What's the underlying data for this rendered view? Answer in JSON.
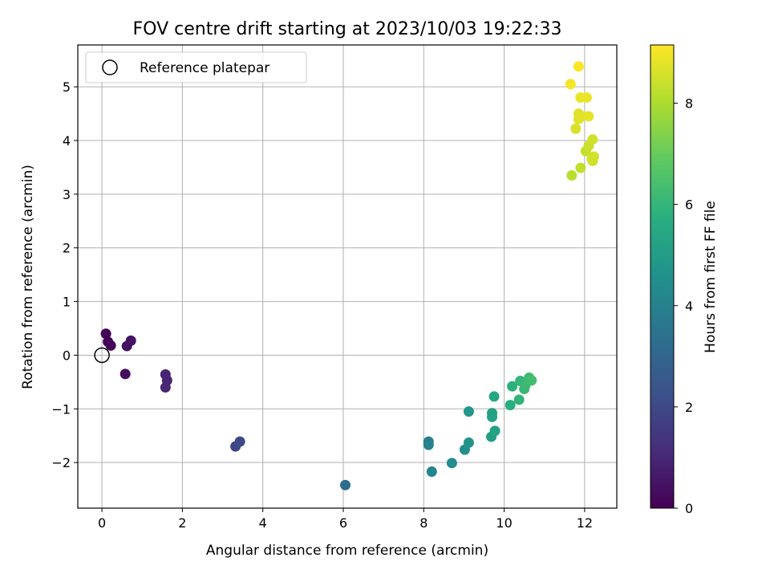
{
  "chart_data": {
    "type": "scatter",
    "title": "FOV centre drift starting at 2023/10/03 19:22:33",
    "xlabel": "Angular distance from reference (arcmin)",
    "ylabel": "Rotation from reference (arcmin)",
    "xlim": [
      -0.6,
      12.8
    ],
    "ylim": [
      -2.85,
      5.78
    ],
    "xticks": [
      0,
      2,
      4,
      6,
      8,
      10,
      12
    ],
    "yticks": [
      -2,
      -1,
      0,
      1,
      2,
      3,
      4,
      5
    ],
    "grid": true,
    "legend": {
      "placement": "top-left",
      "entries": [
        "Reference platepar"
      ]
    },
    "reference_point": {
      "x": 0,
      "y": 0,
      "label": "Reference platepar"
    },
    "colorbar": {
      "label": "Hours from first FF file",
      "min": 0,
      "max": 9.15,
      "ticks": [
        0,
        2,
        4,
        6,
        8
      ],
      "colormap": "viridis"
    },
    "points": [
      {
        "x": 0.1,
        "y": 0.4,
        "c": 0.05
      },
      {
        "x": 0.15,
        "y": 0.25,
        "c": 0.1
      },
      {
        "x": 0.22,
        "y": 0.18,
        "c": 0.15
      },
      {
        "x": 0.58,
        "y": -0.35,
        "c": 0.3
      },
      {
        "x": 0.62,
        "y": 0.17,
        "c": 0.4
      },
      {
        "x": 0.72,
        "y": 0.27,
        "c": 0.45
      },
      {
        "x": 1.58,
        "y": -0.36,
        "c": 0.9
      },
      {
        "x": 1.62,
        "y": -0.47,
        "c": 0.95
      },
      {
        "x": 1.58,
        "y": -0.6,
        "c": 1.0
      },
      {
        "x": 3.32,
        "y": -1.7,
        "c": 1.9
      },
      {
        "x": 3.43,
        "y": -1.61,
        "c": 2.0
      },
      {
        "x": 6.05,
        "y": -2.42,
        "c": 3.2
      },
      {
        "x": 8.12,
        "y": -1.61,
        "c": 4.0
      },
      {
        "x": 8.12,
        "y": -1.67,
        "c": 4.05
      },
      {
        "x": 8.2,
        "y": -2.17,
        "c": 4.15
      },
      {
        "x": 8.7,
        "y": -2.01,
        "c": 4.4
      },
      {
        "x": 9.02,
        "y": -1.76,
        "c": 4.55
      },
      {
        "x": 9.12,
        "y": -1.63,
        "c": 4.7
      },
      {
        "x": 9.12,
        "y": -1.05,
        "c": 4.8
      },
      {
        "x": 9.68,
        "y": -1.52,
        "c": 5.1
      },
      {
        "x": 9.7,
        "y": -1.08,
        "c": 5.2
      },
      {
        "x": 9.7,
        "y": -1.15,
        "c": 5.25
      },
      {
        "x": 9.77,
        "y": -1.41,
        "c": 5.3
      },
      {
        "x": 9.75,
        "y": -0.77,
        "c": 5.45
      },
      {
        "x": 10.15,
        "y": -0.93,
        "c": 5.7
      },
      {
        "x": 10.2,
        "y": -0.58,
        "c": 5.8
      },
      {
        "x": 10.37,
        "y": -0.83,
        "c": 5.9
      },
      {
        "x": 10.4,
        "y": -0.48,
        "c": 6.0
      },
      {
        "x": 10.5,
        "y": -0.63,
        "c": 6.1
      },
      {
        "x": 10.53,
        "y": -0.55,
        "c": 6.15
      },
      {
        "x": 10.62,
        "y": -0.42,
        "c": 6.25
      },
      {
        "x": 10.68,
        "y": -0.47,
        "c": 6.3
      },
      {
        "x": 11.68,
        "y": 3.35,
        "c": 8.2
      },
      {
        "x": 11.9,
        "y": 3.49,
        "c": 8.3
      },
      {
        "x": 12.03,
        "y": 3.8,
        "c": 8.35
      },
      {
        "x": 12.1,
        "y": 3.9,
        "c": 8.4
      },
      {
        "x": 12.18,
        "y": 3.65,
        "c": 8.45
      },
      {
        "x": 12.2,
        "y": 4.02,
        "c": 8.5
      },
      {
        "x": 12.23,
        "y": 3.7,
        "c": 8.55
      },
      {
        "x": 12.2,
        "y": 3.62,
        "c": 8.5
      },
      {
        "x": 11.78,
        "y": 4.22,
        "c": 8.6
      },
      {
        "x": 11.85,
        "y": 4.4,
        "c": 8.7
      },
      {
        "x": 11.85,
        "y": 4.5,
        "c": 8.75
      },
      {
        "x": 11.93,
        "y": 4.45,
        "c": 8.75
      },
      {
        "x": 12.1,
        "y": 4.45,
        "c": 8.8
      },
      {
        "x": 11.9,
        "y": 4.8,
        "c": 8.85
      },
      {
        "x": 12.05,
        "y": 4.8,
        "c": 8.9
      },
      {
        "x": 11.65,
        "y": 5.05,
        "c": 9.0
      },
      {
        "x": 11.85,
        "y": 5.38,
        "c": 9.1
      }
    ]
  }
}
